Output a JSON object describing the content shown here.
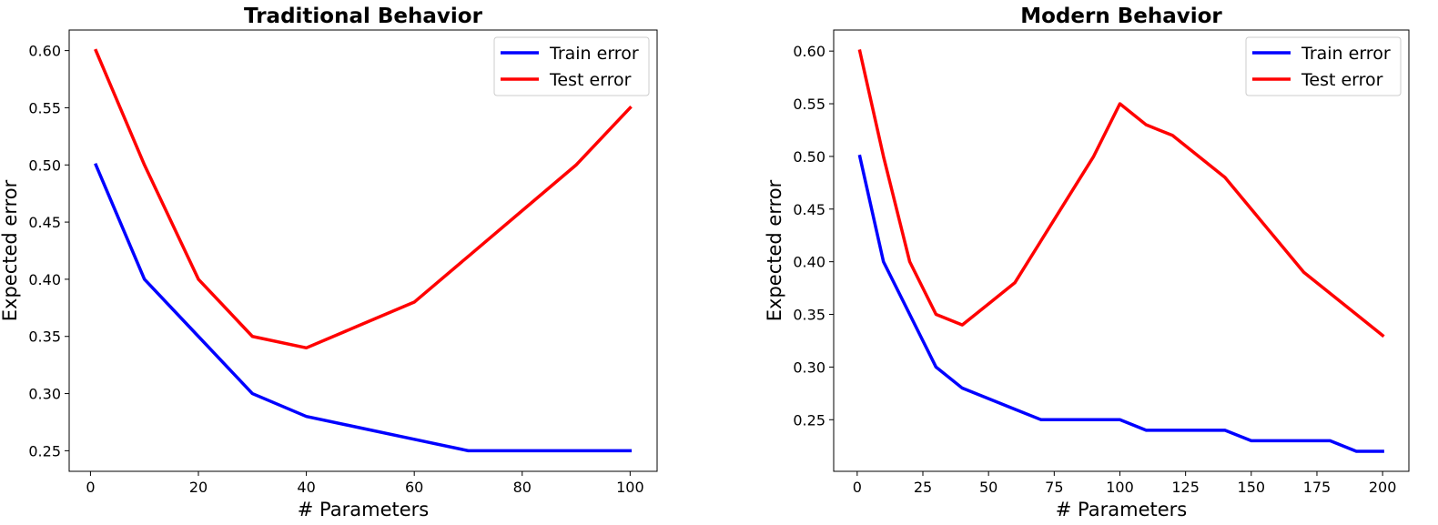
{
  "chart_data": [
    {
      "type": "line",
      "title": "Traditional Behavior",
      "xlabel": "# Parameters",
      "ylabel": "Expected error",
      "xlim": [
        -3.95,
        105
      ],
      "ylim": [
        0.232,
        0.618
      ],
      "xticks": [
        0,
        20,
        40,
        60,
        80,
        100
      ],
      "yticks": [
        0.25,
        0.3,
        0.35,
        0.4,
        0.45,
        0.5,
        0.55,
        0.6
      ],
      "grid": false,
      "legend_position": "top-right",
      "series": [
        {
          "name": "Train error",
          "color": "#0000ff",
          "x": [
            1,
            10,
            20,
            30,
            40,
            50,
            60,
            70,
            80,
            90,
            100
          ],
          "y": [
            0.5,
            0.4,
            0.35,
            0.3,
            0.28,
            0.27,
            0.26,
            0.25,
            0.25,
            0.25,
            0.25
          ]
        },
        {
          "name": "Test error",
          "color": "#ff0000",
          "x": [
            1,
            10,
            20,
            30,
            40,
            50,
            60,
            70,
            80,
            90,
            100
          ],
          "y": [
            0.6,
            0.5,
            0.4,
            0.35,
            0.34,
            0.36,
            0.38,
            0.42,
            0.46,
            0.5,
            0.55
          ]
        }
      ]
    },
    {
      "type": "line",
      "title": "Modern Behavior",
      "xlabel": "# Parameters",
      "ylabel": "Expected error",
      "xlim": [
        -8.95,
        210
      ],
      "ylim": [
        0.201,
        0.62
      ],
      "xticks": [
        0,
        25,
        50,
        75,
        100,
        125,
        150,
        175,
        200
      ],
      "yticks": [
        0.25,
        0.3,
        0.35,
        0.4,
        0.45,
        0.5,
        0.55,
        0.6
      ],
      "grid": false,
      "legend_position": "top-right",
      "series": [
        {
          "name": "Train error",
          "color": "#0000ff",
          "x": [
            1,
            10,
            20,
            30,
            40,
            50,
            60,
            70,
            80,
            90,
            100,
            110,
            120,
            130,
            140,
            150,
            160,
            170,
            180,
            190,
            200
          ],
          "y": [
            0.5,
            0.4,
            0.35,
            0.3,
            0.28,
            0.27,
            0.26,
            0.25,
            0.25,
            0.25,
            0.25,
            0.24,
            0.24,
            0.24,
            0.24,
            0.23,
            0.23,
            0.23,
            0.23,
            0.22,
            0.22
          ]
        },
        {
          "name": "Test error",
          "color": "#ff0000",
          "x": [
            1,
            10,
            20,
            30,
            40,
            50,
            60,
            70,
            80,
            90,
            100,
            110,
            120,
            130,
            140,
            150,
            160,
            170,
            180,
            190,
            200
          ],
          "y": [
            0.6,
            0.5,
            0.4,
            0.35,
            0.34,
            0.36,
            0.38,
            0.42,
            0.46,
            0.5,
            0.55,
            0.53,
            0.52,
            0.5,
            0.48,
            0.45,
            0.42,
            0.39,
            0.37,
            0.35,
            0.33
          ]
        }
      ]
    }
  ]
}
